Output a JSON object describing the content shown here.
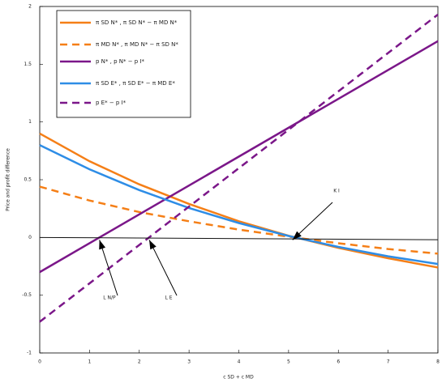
{
  "chart_data": {
    "type": "line",
    "ylabel": "Price and profit difference",
    "xlabel": "c SD + c MD",
    "xlim": [
      0,
      8
    ],
    "xticks": [
      0,
      1,
      2,
      3,
      4,
      5,
      6,
      7,
      8
    ],
    "ylim": [
      -1,
      2
    ],
    "yticks": [
      -1,
      -0.5,
      0,
      0.5,
      1,
      1.5,
      2
    ],
    "series": [
      {
        "name": "π SD N* , π SD N* − π MD N*",
        "color": "#f57f17",
        "dash": false,
        "x": [
          0,
          1,
          2,
          3,
          4,
          5,
          6,
          7,
          8
        ],
        "values": [
          0.9,
          0.66,
          0.46,
          0.29,
          0.14,
          0.015,
          -0.09,
          -0.18,
          -0.26
        ]
      },
      {
        "name": "π MD N* , π MD N* − π SD N*",
        "color": "#f57f17",
        "dash": true,
        "x": [
          0,
          1,
          2,
          3,
          4,
          5,
          6,
          7,
          8
        ],
        "values": [
          0.44,
          0.32,
          0.22,
          0.14,
          0.068,
          0.007,
          -0.05,
          -0.1,
          -0.14
        ]
      },
      {
        "name": "p N* , p N* − p I*",
        "color": "#7b1789",
        "dash": false,
        "x": [
          0,
          8
        ],
        "values": [
          -0.3,
          1.7
        ]
      },
      {
        "name": "π SD E* , π SD E* − π MD E*",
        "color": "#2e8de6",
        "dash": false,
        "x": [
          0,
          1,
          2,
          3,
          4,
          5,
          6,
          7,
          8
        ],
        "values": [
          0.8,
          0.59,
          0.41,
          0.255,
          0.125,
          0.013,
          -0.082,
          -0.163,
          -0.23
        ]
      },
      {
        "name": "p E* − p I*",
        "color": "#7b1789",
        "dash": true,
        "x": [
          0,
          8
        ],
        "values": [
          -0.73,
          1.93
        ]
      },
      {
        "color": "#111111",
        "dash": false,
        "x": [
          0,
          8
        ],
        "values": [
          0,
          -0.02
        ]
      }
    ],
    "annotations": [
      {
        "text": "K I",
        "x": 5.08,
        "y": 0
      },
      {
        "text": "L N/P",
        "x": 1.2,
        "y": 0
      },
      {
        "text": "L E",
        "x": 2.2,
        "y": 0
      }
    ]
  }
}
